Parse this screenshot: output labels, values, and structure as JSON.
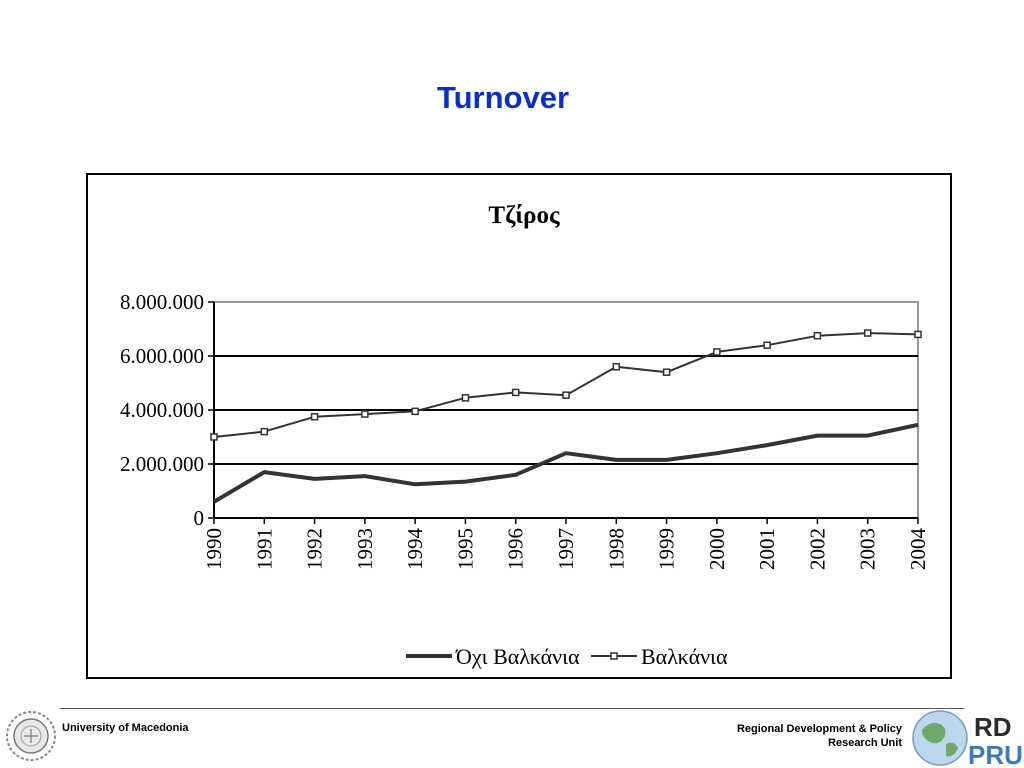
{
  "slide": {
    "title": "Turnover"
  },
  "footer": {
    "left_text": "University of Macedonia",
    "right_line1": "Regional Development & Policy",
    "right_line2": "Research Unit"
  },
  "chart_data": {
    "type": "line",
    "title": "Τζίρος",
    "xlabel": "",
    "ylabel": "",
    "categories": [
      "1990",
      "1991",
      "1992",
      "1993",
      "1994",
      "1995",
      "1996",
      "1997",
      "1998",
      "1999",
      "2000",
      "2001",
      "2002",
      "2003",
      "2004"
    ],
    "ylim": [
      0,
      8000000
    ],
    "yticks": [
      0,
      2000000,
      4000000,
      6000000,
      8000000
    ],
    "ytick_labels": [
      "0",
      "2.000.000",
      "4.000.000",
      "6.000.000",
      "8.000.000"
    ],
    "grid": true,
    "legend_position": "bottom",
    "series": [
      {
        "name": "Όχι Βαλκάνια",
        "color": "#333333",
        "marker": "none",
        "values": [
          600000,
          1700000,
          1450000,
          1550000,
          1250000,
          1350000,
          1600000,
          2400000,
          2150000,
          2150000,
          2400000,
          2700000,
          3050000,
          3050000,
          3450000
        ]
      },
      {
        "name": "Βαλκάνια",
        "color": "#333333",
        "marker": "square",
        "values": [
          3000000,
          3200000,
          3750000,
          3850000,
          3950000,
          4450000,
          4650000,
          4550000,
          5600000,
          5400000,
          6150000,
          6400000,
          6750000,
          6850000,
          6800000
        ]
      }
    ]
  },
  "logos": {
    "left": "university-seal-icon",
    "right": "rdpru-globe-logo-icon"
  }
}
